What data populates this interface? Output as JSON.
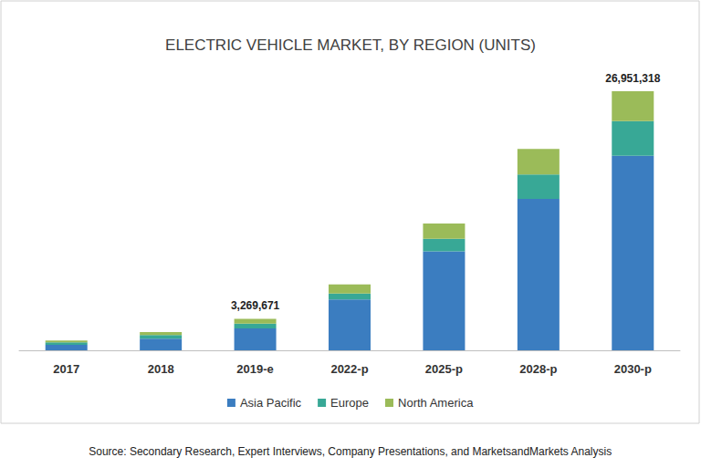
{
  "chart_data": {
    "type": "bar",
    "title": "ELECTRIC VEHICLE MARKET, BY REGION (UNITS)",
    "categories": [
      "2017",
      "2018",
      "2019-e",
      "2022-p",
      "2025-p",
      "2028-p",
      "2030-p"
    ],
    "series": [
      {
        "name": "Asia Pacific",
        "color": "#3b7dc0",
        "values": [
          570000,
          1200000,
          2269671,
          5300000,
          10300000,
          15750000,
          20251318
        ]
      },
      {
        "name": "Europe",
        "color": "#38a896",
        "values": [
          250000,
          400000,
          500000,
          600000,
          1300000,
          2550000,
          3600000
        ]
      },
      {
        "name": "North America",
        "color": "#9bbb59",
        "values": [
          200000,
          300000,
          500000,
          950000,
          1600000,
          2650000,
          3100000
        ]
      }
    ],
    "stacked": true,
    "annotations": [
      {
        "x": "2019-e",
        "y": 3269671,
        "text": "3,269,671"
      },
      {
        "x": "2030-p",
        "y": 26951318,
        "text": "26,951,318"
      }
    ],
    "source": "Source: Secondary Research, Expert Interviews, Company Presentations, and MarketsandMarkets Analysis",
    "ylim": [
      0,
      30000000
    ],
    "yticks": [
      0,
      30000000
    ],
    "grid": false,
    "tick_labels": "x",
    "legend": "bottom"
  }
}
